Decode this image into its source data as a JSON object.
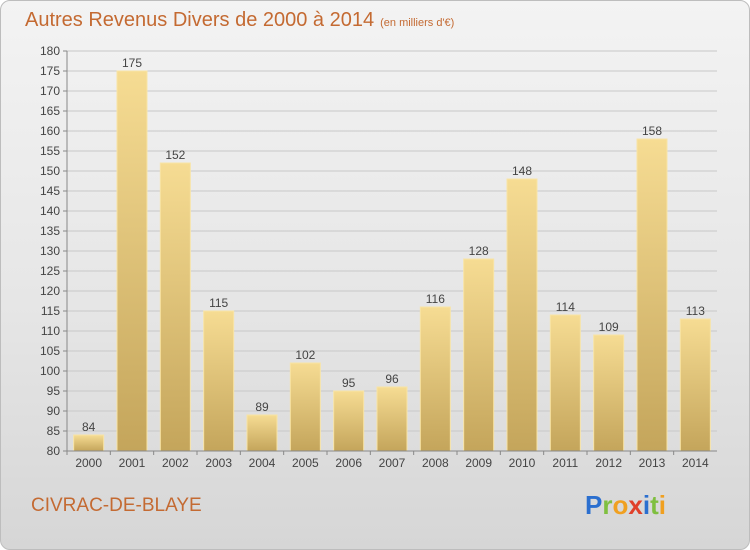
{
  "title": "Autres Revenus Divers de 2000 à 2014",
  "subtitle": "(en milliers d'€)",
  "place": "CIVRAC-DE-BLAYE",
  "logo": {
    "letters": [
      "P",
      "r",
      "o",
      "x",
      "i",
      "t",
      "i"
    ],
    "colors": [
      "#2b6fcf",
      "#7fbf3f",
      "#f0a020",
      "#e0402a",
      "#2b6fcf",
      "#7fbf3f",
      "#f0a020"
    ]
  },
  "colors": {
    "bar_top": "#f6dc93",
    "bar_bottom": "#c4a55b",
    "bar_edge": "#f8e4a6",
    "title": "#c46a32"
  },
  "chart_data": {
    "type": "bar",
    "categories": [
      "2000",
      "2001",
      "2002",
      "2003",
      "2004",
      "2005",
      "2006",
      "2007",
      "2008",
      "2009",
      "2010",
      "2011",
      "2012",
      "2013",
      "2014"
    ],
    "values": [
      84,
      175,
      152,
      115,
      89,
      102,
      95,
      96,
      116,
      128,
      148,
      114,
      109,
      158,
      113
    ],
    "ylim": [
      80,
      180
    ],
    "yticks": [
      80,
      85,
      90,
      95,
      100,
      105,
      110,
      115,
      120,
      125,
      130,
      135,
      140,
      145,
      150,
      155,
      160,
      165,
      170,
      175,
      180
    ],
    "grid": true,
    "legend": "none"
  }
}
